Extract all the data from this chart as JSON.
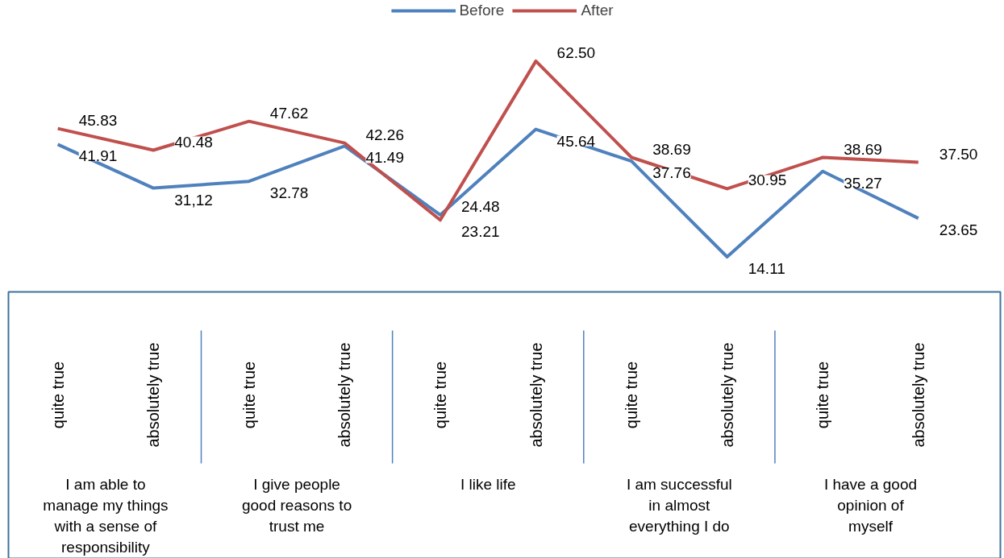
{
  "chart_data": {
    "type": "line",
    "categories": [
      "quite true",
      "absolutely true",
      "quite true",
      "absolutely true",
      "quite true",
      "absolutely true",
      "quite true",
      "absolutely true",
      "quite true",
      "absolutely true"
    ],
    "series": [
      {
        "name": "Before",
        "color": "#4f81bd",
        "values": [
          41.91,
          31.12,
          32.78,
          41.49,
          24.48,
          45.64,
          37.76,
          14.11,
          35.27,
          23.65
        ],
        "value_labels": [
          "41.91",
          "31,12",
          "32.78",
          "41.49",
          "24.48",
          "45.64",
          "37.76",
          "14.11",
          "35.27",
          "23.65"
        ]
      },
      {
        "name": "After",
        "color": "#c0504d",
        "values": [
          45.83,
          40.48,
          47.62,
          42.26,
          23.21,
          62.5,
          38.69,
          30.95,
          38.69,
          37.5
        ],
        "value_labels": [
          "45.83",
          "40.48",
          "47.62",
          "42.26",
          "23.21",
          "62.50",
          "38.69",
          "30.95",
          "38.69",
          "37.50"
        ]
      }
    ],
    "annotations": [
      "I am able to manage my things with a sense of responsibility",
      "I give people good reasons to trust me",
      "I like life",
      "I am successful in almost everything I do",
      "I have a good opinion of myself"
    ],
    "legend": "top",
    "marker": "none",
    "line_style": "solid",
    "grid": false
  }
}
